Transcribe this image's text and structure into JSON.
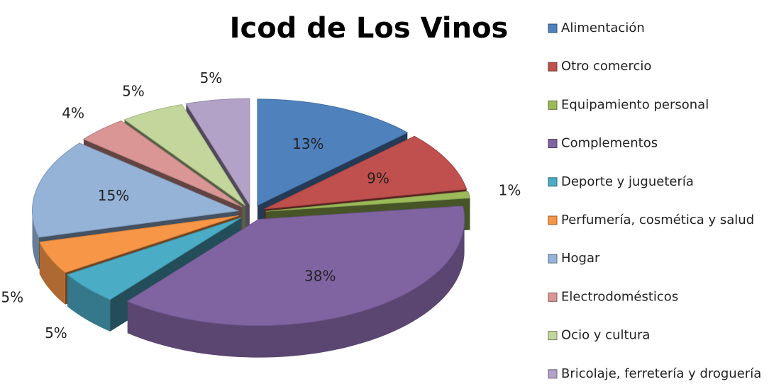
{
  "chart_data": {
    "type": "pie",
    "title": "Icod de Los Vinos",
    "categories": [
      "Alimentación",
      "Otro comercio",
      "Equipamiento personal",
      "Complementos",
      "Deporte y juguetería",
      "Perfumería, cosmética y salud",
      "Hogar",
      "Electrodomésticos",
      "Ocio y cultura",
      "Bricolaje, ferretería y droguería"
    ],
    "values": [
      13,
      9,
      1,
      38,
      5,
      5,
      15,
      4,
      5,
      5
    ],
    "value_labels": [
      "13%",
      "9%",
      "1%",
      "38%",
      "5%",
      "5%",
      "15%",
      "4%",
      "5%",
      "5%"
    ],
    "colors": [
      "#4f81bd",
      "#c0504d",
      "#9bbb59",
      "#8064a2",
      "#4bacc6",
      "#f79646",
      "#95b3d7",
      "#d99694",
      "#c3d69b",
      "#b3a2c7"
    ],
    "legend": "right"
  }
}
